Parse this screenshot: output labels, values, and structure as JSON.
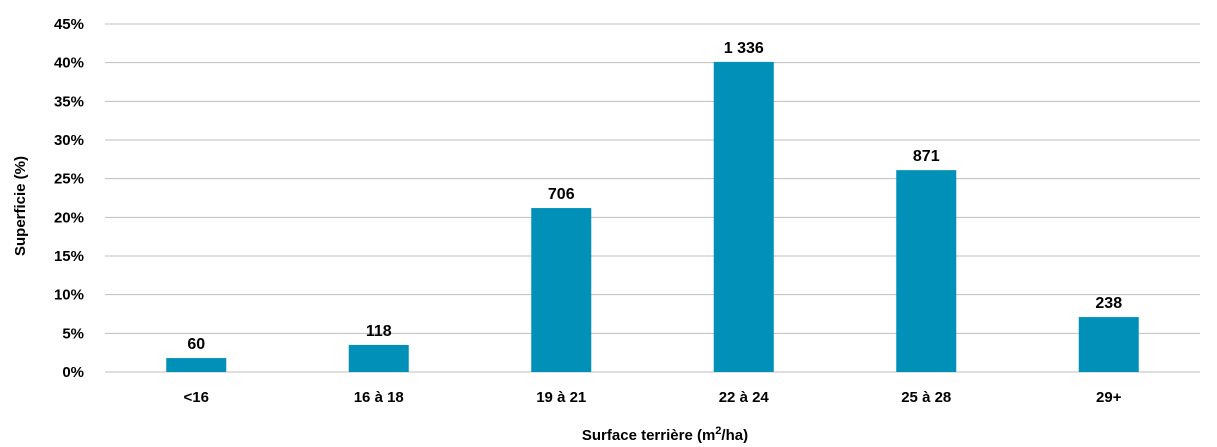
{
  "chart_data": {
    "type": "bar",
    "categories": [
      "<16",
      "16 à 18",
      "19 à 21",
      "22 à 24",
      "25 à 28",
      "29+"
    ],
    "values": [
      1.8,
      3.5,
      21.2,
      40.1,
      26.1,
      7.1
    ],
    "data_labels": [
      "60",
      "118",
      "706",
      "1 336",
      "871",
      "238"
    ],
    "title": "",
    "xlabel_main": "Surface terrière (m",
    "xlabel_sup": "2",
    "xlabel_end": "/ha)",
    "ylabel": "Superficie (%)",
    "ylim": [
      0,
      45
    ],
    "yticks": [
      0,
      5,
      10,
      15,
      20,
      25,
      30,
      35,
      40,
      45
    ],
    "ytick_labels": [
      "0%",
      "5%",
      "10%",
      "15%",
      "20%",
      "25%",
      "30%",
      "35%",
      "40%",
      "45%"
    ],
    "grid": true,
    "legend": "none",
    "bar_color": "#0090b8"
  }
}
